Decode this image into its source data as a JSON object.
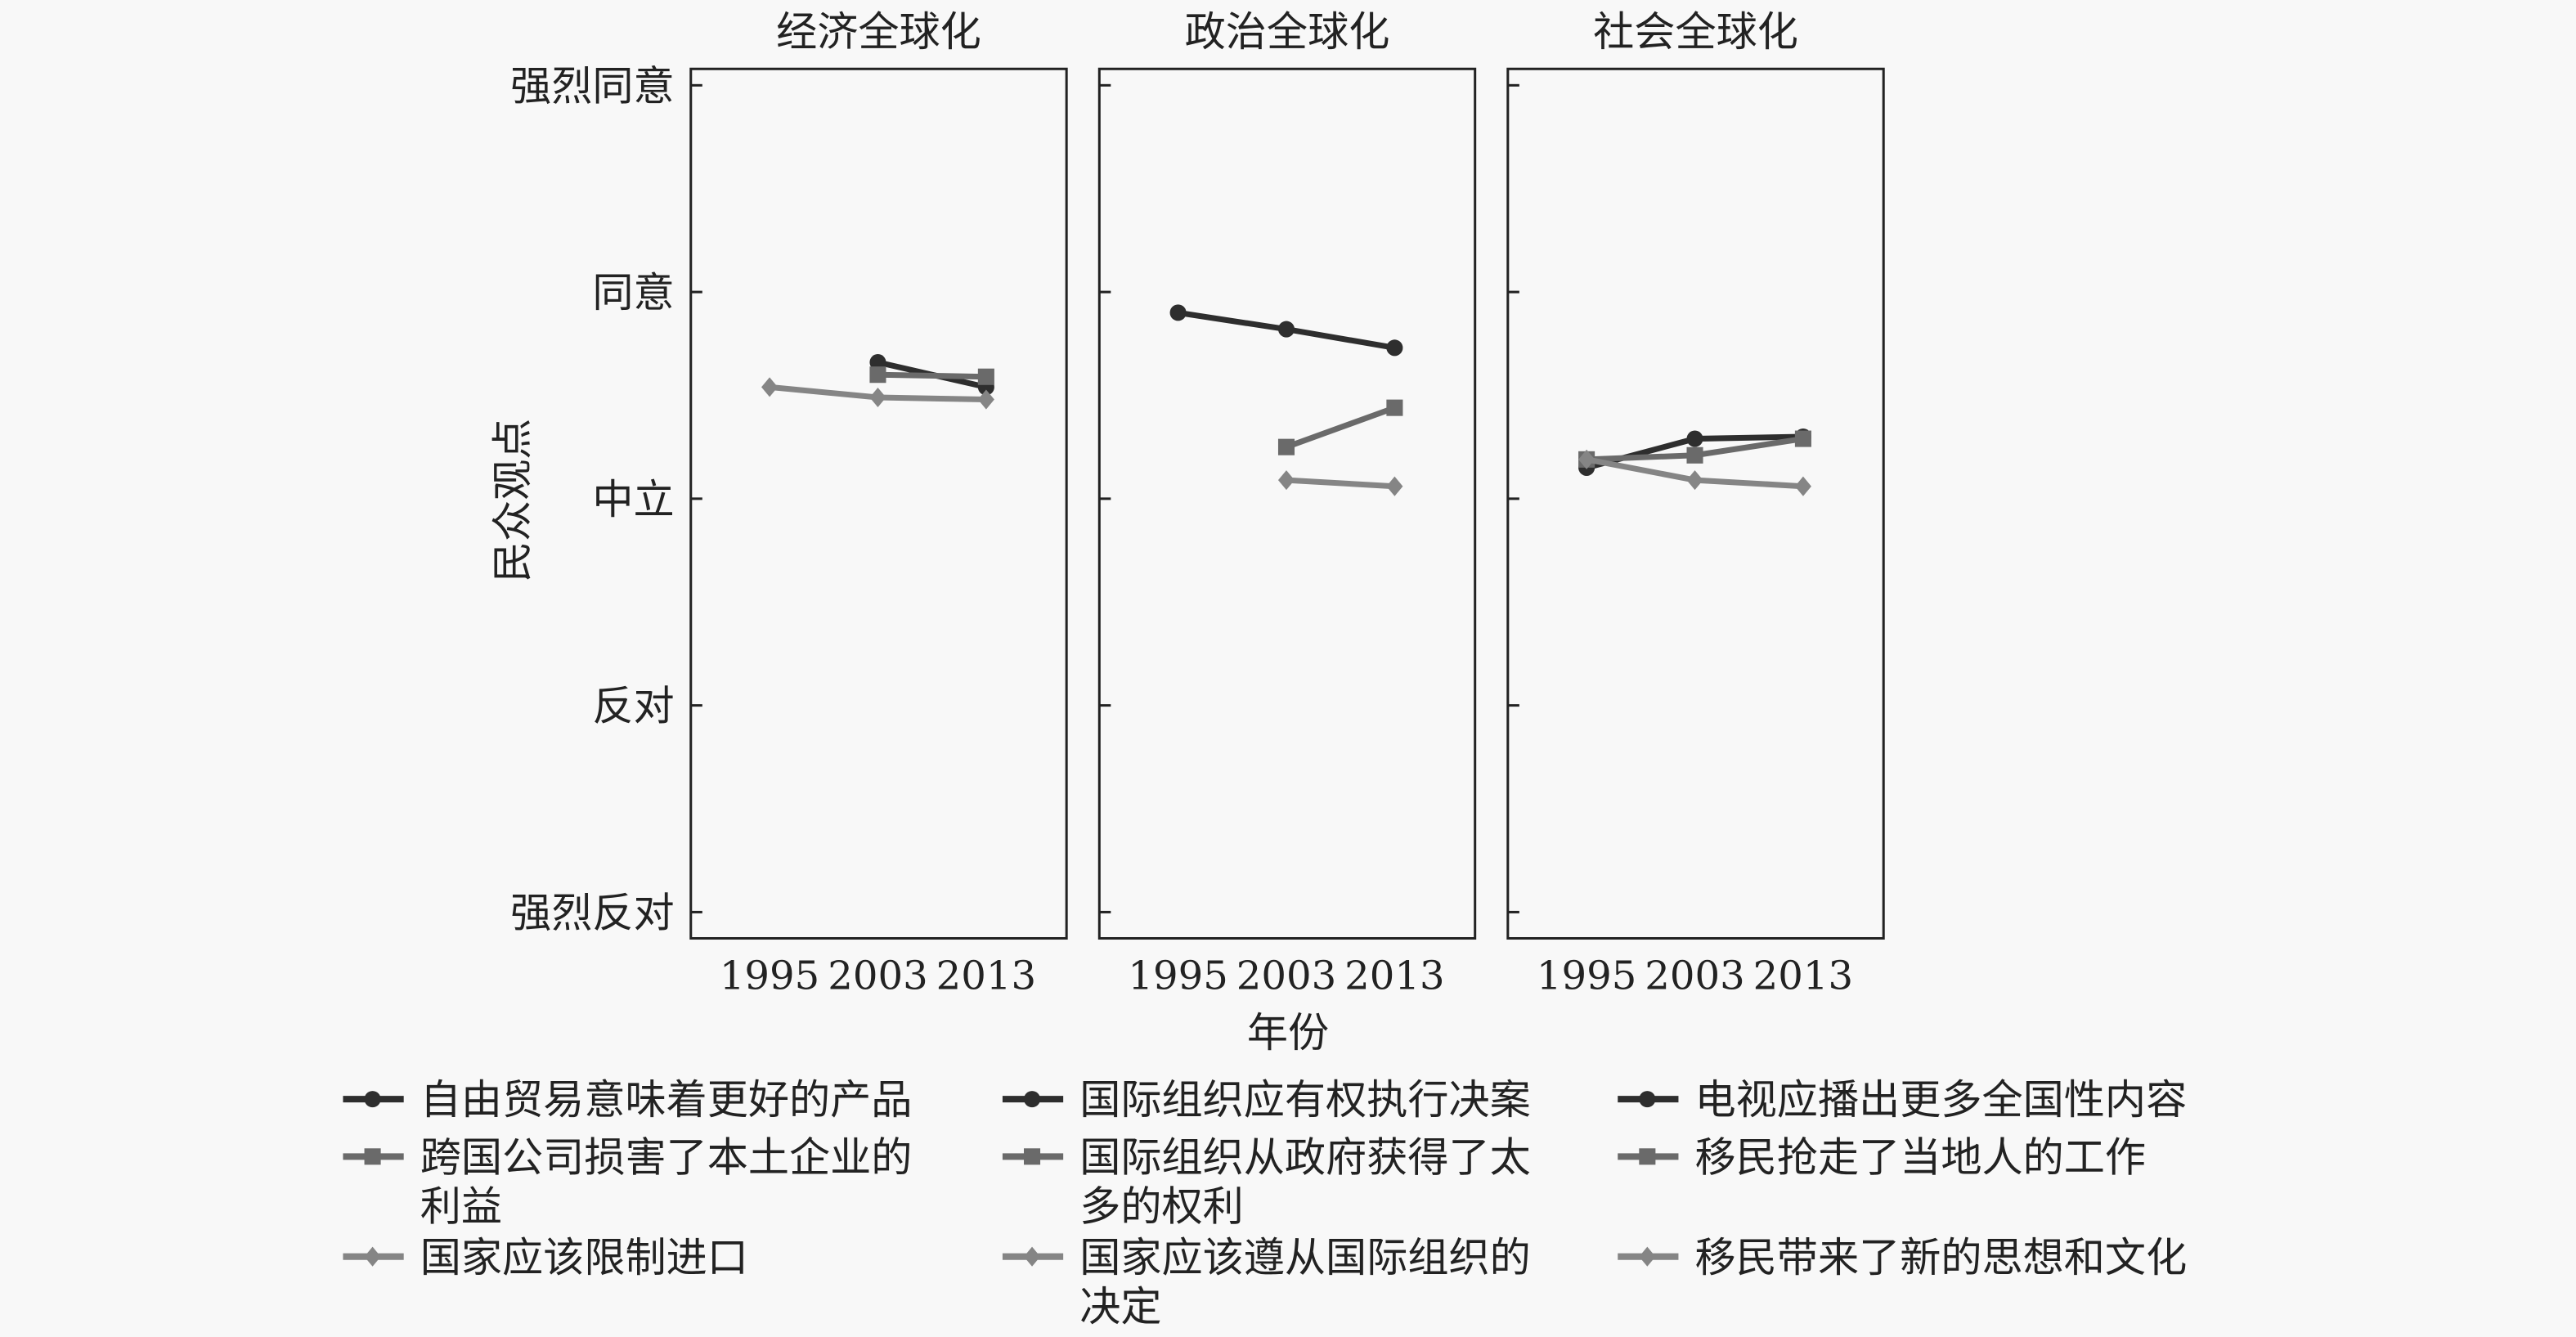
{
  "chart_data": {
    "type": "line",
    "xlabel": "年份",
    "ylabel": "民众观点",
    "x_ticks": [
      "1995",
      "2003",
      "2013"
    ],
    "y_ticks": [
      {
        "value": 5,
        "label": "强烈同意"
      },
      {
        "value": 4,
        "label": "同意"
      },
      {
        "value": 3,
        "label": "中立"
      },
      {
        "value": 2,
        "label": "反对"
      },
      {
        "value": 1,
        "label": "强烈反对"
      }
    ],
    "ylim": [
      1,
      5
    ],
    "panels": [
      {
        "title": "经济全球化",
        "series": [
          {
            "name": "自由贸易意味着更好的产品",
            "marker": "circle",
            "color": "#2e2e2e",
            "x": [
              "2003",
              "2013"
            ],
            "values": [
              3.66,
              3.54
            ]
          },
          {
            "name": "跨国公司损害了本土企业的利益",
            "marker": "square",
            "color": "#6a6a6a",
            "x": [
              "2003",
              "2013"
            ],
            "values": [
              3.6,
              3.59
            ]
          },
          {
            "name": "国家应该限制进口",
            "marker": "diamond",
            "color": "#858585",
            "x": [
              "1995",
              "2003",
              "2013"
            ],
            "values": [
              3.54,
              3.49,
              3.48
            ]
          }
        ]
      },
      {
        "title": "政治全球化",
        "series": [
          {
            "name": "国际组织应有权执行决案",
            "marker": "circle",
            "color": "#2e2e2e",
            "x": [
              "1995",
              "2003",
              "2013"
            ],
            "values": [
              3.9,
              3.82,
              3.73
            ]
          },
          {
            "name": "国际组织从政府获得了太多的权利",
            "marker": "square",
            "color": "#6a6a6a",
            "x": [
              "2003",
              "2013"
            ],
            "values": [
              3.25,
              3.44
            ]
          },
          {
            "name": "国家应该遵从国际组织的决定",
            "marker": "diamond",
            "color": "#858585",
            "x": [
              "2003",
              "2013"
            ],
            "values": [
              3.09,
              3.06
            ]
          }
        ]
      },
      {
        "title": "社会全球化",
        "series": [
          {
            "name": "电视应播出更多全国性内容",
            "marker": "circle",
            "color": "#2e2e2e",
            "x": [
              "1995",
              "2003",
              "2013"
            ],
            "values": [
              3.15,
              3.29,
              3.3
            ]
          },
          {
            "name": "移民抢走了当地人的工作",
            "marker": "square",
            "color": "#6a6a6a",
            "x": [
              "1995",
              "2003",
              "2013"
            ],
            "values": [
              3.19,
              3.21,
              3.29
            ]
          },
          {
            "name": "移民带来了新的思想和文化",
            "marker": "diamond",
            "color": "#858585",
            "x": [
              "1995",
              "2003",
              "2013"
            ],
            "values": [
              3.19,
              3.09,
              3.06
            ]
          }
        ]
      }
    ],
    "legend": {
      "placement": "bottom",
      "columns": [
        [
          {
            "lines": [
              "自由贸易意味着更好的产品"
            ],
            "marker": "circle",
            "color": "#2e2e2e"
          },
          {
            "lines": [
              "跨国公司损害了本土企业的",
              "利益"
            ],
            "marker": "square",
            "color": "#6a6a6a"
          },
          {
            "lines": [
              "国家应该限制进口"
            ],
            "marker": "diamond",
            "color": "#858585"
          }
        ],
        [
          {
            "lines": [
              "国际组织应有权执行决案"
            ],
            "marker": "circle",
            "color": "#2e2e2e"
          },
          {
            "lines": [
              "国际组织从政府获得了太",
              "多的权利"
            ],
            "marker": "square",
            "color": "#6a6a6a"
          },
          {
            "lines": [
              "国家应该遵从国际组织的",
              "决定"
            ],
            "marker": "diamond",
            "color": "#858585"
          }
        ],
        [
          {
            "lines": [
              "电视应播出更多全国性内容"
            ],
            "marker": "circle",
            "color": "#2e2e2e"
          },
          {
            "lines": [
              "移民抢走了当地人的工作"
            ],
            "marker": "square",
            "color": "#6a6a6a"
          },
          {
            "lines": [
              "移民带来了新的思想和文化"
            ],
            "marker": "diamond",
            "color": "#858585"
          }
        ]
      ]
    }
  }
}
